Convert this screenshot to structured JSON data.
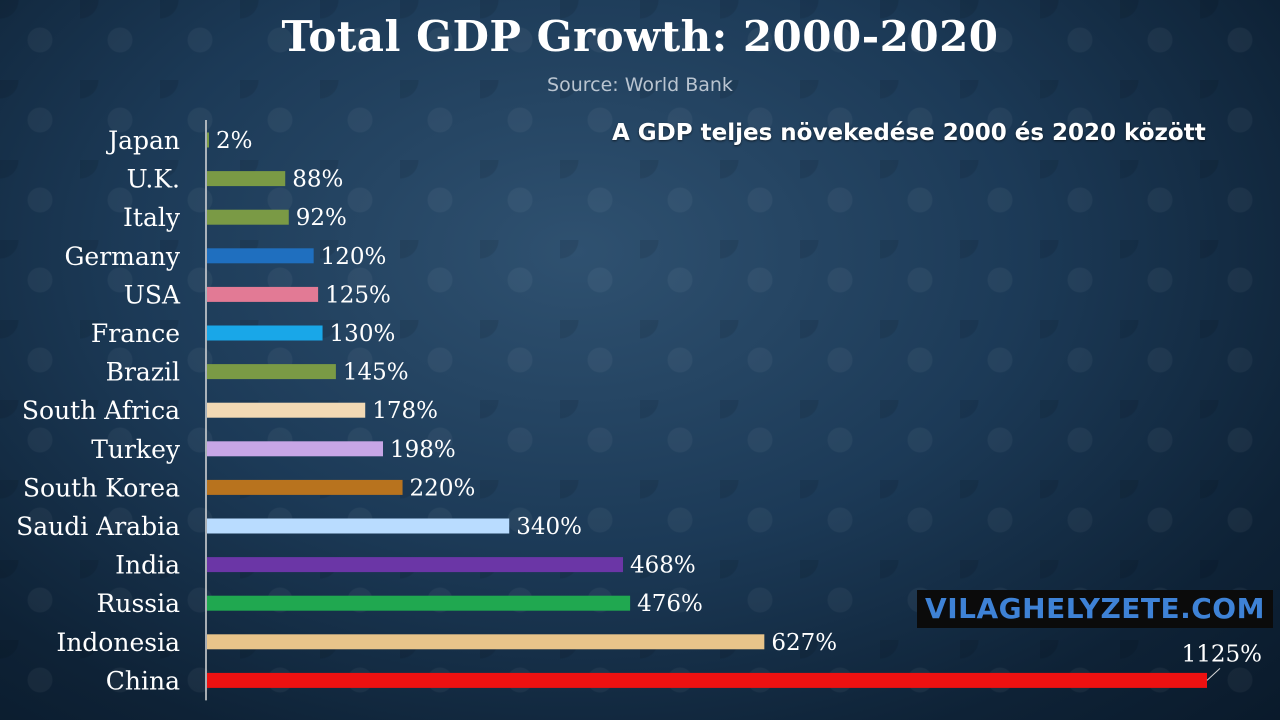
{
  "title": "Total GDP Growth: 2000-2020",
  "subtitle": "Source: World Bank",
  "annotation": "A GDP teljes növekedése 2000 és 2020 között",
  "watermark": "VILAGHELYZETE.COM",
  "chart_data": {
    "type": "bar",
    "orientation": "horizontal",
    "categories": [
      "Japan",
      "U.K.",
      "Italy",
      "Germany",
      "USA",
      "France",
      "Brazil",
      "South Africa",
      "Turkey",
      "South Korea",
      "Saudi Arabia",
      "India",
      "Russia",
      "Indonesia",
      "China"
    ],
    "values": [
      2,
      88,
      92,
      120,
      125,
      130,
      145,
      178,
      198,
      220,
      340,
      468,
      476,
      627,
      1125
    ],
    "value_labels": [
      "2%",
      "88%",
      "92%",
      "120%",
      "125%",
      "130%",
      "145%",
      "178%",
      "198%",
      "220%",
      "340%",
      "468%",
      "476%",
      "627%",
      "1125%"
    ],
    "colors": [
      "#7a9a45",
      "#7a9a45",
      "#7a9a45",
      "#1f6fbf",
      "#e27a95",
      "#19a7e8",
      "#7a9a45",
      "#f2d9b4",
      "#c7a6e6",
      "#b8731e",
      "#b9dcff",
      "#6b36a6",
      "#20a850",
      "#e8c48a",
      "#ee1111"
    ],
    "xlim": [
      0,
      1125
    ],
    "grid": false,
    "legend": "none"
  }
}
